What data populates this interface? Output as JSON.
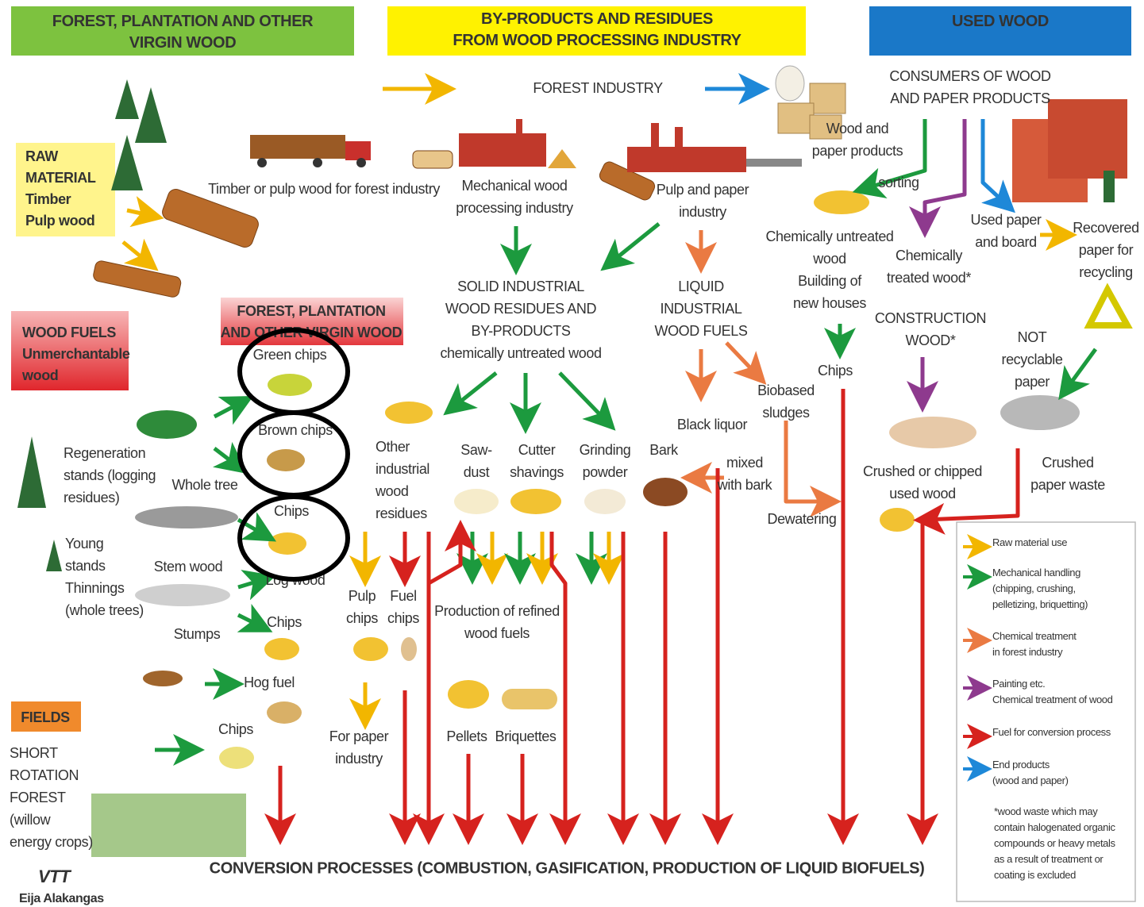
{
  "headers": [
    {
      "lines": [
        "FOREST, PLANTATION AND OTHER",
        "VIRGIN WOOD"
      ]
    },
    {
      "lines": [
        "BY-PRODUCTS AND RESIDUES",
        "FROM WOOD PROCESSING INDUSTRY"
      ]
    },
    {
      "lines": [
        "USED WOOD"
      ]
    }
  ],
  "labels": [
    {
      "lines": [
        "FOREST INDUSTRY"
      ]
    },
    {
      "lines": [
        "CONSUMERS OF WOOD",
        "AND PAPER PRODUCTS"
      ]
    },
    {
      "lines": [
        "RAW",
        "MATERIAL",
        "Timber",
        "Pulp wood"
      ]
    },
    {
      "lines": [
        "Timber or pulp wood for forest industry"
      ]
    },
    {
      "lines": [
        "Mechanical wood",
        "processing industry"
      ]
    },
    {
      "lines": [
        "Pulp and paper",
        "industry"
      ]
    },
    {
      "lines": [
        "Wood and",
        "paper products"
      ]
    },
    {
      "lines": [
        "sorting"
      ]
    },
    {
      "lines": [
        "Chemically untreated",
        "wood"
      ]
    },
    {
      "lines": [
        "Building of",
        "new houses"
      ]
    },
    {
      "lines": [
        "Chemically",
        "treated wood*"
      ]
    },
    {
      "lines": [
        "Used paper",
        "and board"
      ]
    },
    {
      "lines": [
        "Recovered",
        "paper for",
        "recycling"
      ]
    },
    {
      "lines": [
        "SOLID INDUSTRIAL",
        "WOOD RESIDUES AND",
        "BY-PRODUCTS",
        "chemically untreated wood"
      ]
    },
    {
      "lines": [
        "LIQUID",
        "INDUSTRIAL",
        "WOOD FUELS"
      ]
    },
    {
      "lines": [
        "CONSTRUCTION",
        "WOOD*"
      ]
    },
    {
      "lines": [
        "NOT",
        "recyclable",
        "paper"
      ]
    },
    {
      "lines": [
        "WOOD FUELS",
        "Unmerchantable",
        "wood"
      ]
    },
    {
      "lines": [
        "FOREST, PLANTATION",
        "AND OTHER VIRGIN WOOD"
      ]
    },
    {
      "lines": [
        "Green chips"
      ]
    },
    {
      "lines": [
        "Brown chips"
      ]
    },
    {
      "lines": [
        "Chips"
      ]
    },
    {
      "lines": [
        "Regeneration",
        "stands (logging",
        "residues)"
      ]
    },
    {
      "lines": [
        "Whole tree"
      ]
    },
    {
      "lines": [
        "Young",
        "stands",
        "Thinnings",
        "(whole  trees)"
      ]
    },
    {
      "lines": [
        "Stem wood"
      ]
    },
    {
      "lines": [
        "Log wood"
      ]
    },
    {
      "lines": [
        "Stumps"
      ]
    },
    {
      "lines": [
        "Chips"
      ]
    },
    {
      "lines": [
        "Hog fuel"
      ]
    },
    {
      "lines": [
        "Chips"
      ]
    },
    {
      "lines": [
        "Other",
        "industrial",
        "wood",
        "residues"
      ]
    },
    {
      "lines": [
        "Saw-",
        "dust"
      ]
    },
    {
      "lines": [
        "Cutter",
        "shavings"
      ]
    },
    {
      "lines": [
        "Grinding",
        "powder"
      ]
    },
    {
      "lines": [
        "Bark"
      ]
    },
    {
      "lines": [
        "Black liquor"
      ]
    },
    {
      "lines": [
        "Biobased",
        "sludges"
      ]
    },
    {
      "lines": [
        "Chips"
      ]
    },
    {
      "lines": [
        "mixed",
        "with bark"
      ]
    },
    {
      "lines": [
        "Dewatering"
      ]
    },
    {
      "lines": [
        "Crushed or chipped",
        "used  wood"
      ]
    },
    {
      "lines": [
        "Crushed",
        "paper waste"
      ]
    },
    {
      "lines": [
        "Pulp",
        "chips"
      ]
    },
    {
      "lines": [
        "Fuel",
        "chips"
      ]
    },
    {
      "lines": [
        "Production of refined",
        "wood fuels"
      ]
    },
    {
      "lines": [
        "For paper",
        "industry"
      ]
    },
    {
      "lines": [
        "Pellets"
      ]
    },
    {
      "lines": [
        "Briquettes"
      ]
    },
    {
      "lines": [
        "FIELDS"
      ]
    },
    {
      "lines": [
        "SHORT",
        "ROTATION",
        "FOREST",
        "(willow",
        "energy crops)"
      ]
    }
  ],
  "legend": {
    "items": [
      {
        "lines": [
          "Raw material use"
        ]
      },
      {
        "lines": [
          "Mechanical handling",
          "(chipping, crushing,",
          "pelletizing, briquetting)"
        ]
      },
      {
        "lines": [
          "Chemical  treatment",
          "in forest industry"
        ]
      },
      {
        "lines": [
          "Painting etc.",
          "Chemical treatment of wood"
        ]
      },
      {
        "lines": [
          "Fuel for conversion process"
        ]
      },
      {
        "lines": [
          "End products",
          "(wood and paper)"
        ]
      }
    ],
    "note": [
      "*wood waste which may",
      "contain halogenated organic",
      "compounds or heavy metals",
      "as a result of treatment or",
      "coating is excluded"
    ]
  },
  "footer": "CONVERSION PROCESSES (COMBUSTION, GASIFICATION, PRODUCTION OF LIQUID BIOFUELS)",
  "logo": "VTT",
  "credit": "Eija Alakangas"
}
